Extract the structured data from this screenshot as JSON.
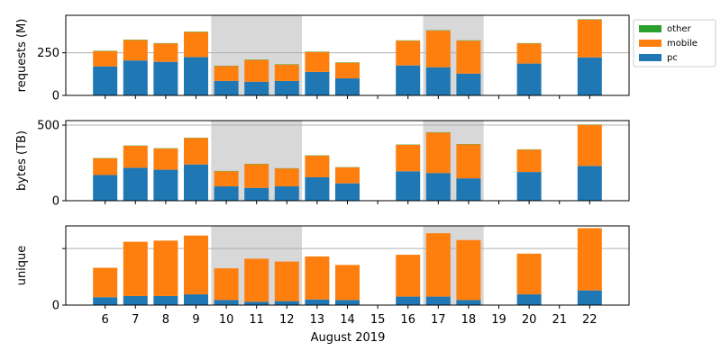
{
  "chart_data": {
    "type": "bar",
    "stacked": true,
    "xlabel": "August 2019",
    "x": [
      6,
      7,
      8,
      9,
      10,
      11,
      12,
      13,
      14,
      15,
      16,
      17,
      18,
      19,
      20,
      21,
      22
    ],
    "weekend_shading": [
      [
        10,
        12
      ],
      [
        17,
        18
      ]
    ],
    "legend": {
      "placement": "top-right",
      "entries": [
        {
          "name": "other",
          "color": "#2ca02c"
        },
        {
          "name": "mobile",
          "color": "#ff7f0e"
        },
        {
          "name": "pc",
          "color": "#1f77b4"
        }
      ]
    },
    "panels": [
      {
        "ylabel": "requests (M)",
        "ylim": [
          0,
          470
        ],
        "yticks": [
          {
            "value": 0,
            "label": "0"
          },
          {
            "value": 250,
            "label": "250"
          }
        ],
        "hline": 250,
        "series": [
          {
            "name": "pc",
            "values": [
              170,
              205,
              197,
              225,
              85,
              80,
              85,
              138,
              100,
              null,
              176,
              165,
              128,
              null,
              187,
              null,
              223
            ]
          },
          {
            "name": "mobile",
            "values": [
              90,
              120,
              108,
              147,
              87,
              128,
              96,
              117,
              92,
              null,
              145,
              215,
              193,
              null,
              118,
              null,
              222
            ]
          },
          {
            "name": "other",
            "values": [
              2,
              2,
              2,
              2,
              2,
              2,
              2,
              2,
              2,
              null,
              2,
              2,
              2,
              null,
              2,
              null,
              2
            ]
          }
        ]
      },
      {
        "ylabel": "bytes (TB)",
        "ylim": [
          0,
          530
        ],
        "yticks": [
          {
            "value": 0,
            "label": "0"
          },
          {
            "value": 500,
            "label": "500"
          }
        ],
        "hline": 500,
        "series": [
          {
            "name": "pc",
            "values": [
              170,
              218,
              205,
              240,
              95,
              85,
              95,
              155,
              115,
              null,
              195,
              183,
              148,
              null,
              190,
              null,
              230
            ]
          },
          {
            "name": "mobile",
            "values": [
              110,
              145,
              140,
              175,
              100,
              157,
              118,
              143,
              105,
              null,
              175,
              268,
              225,
              null,
              148,
              null,
              272
            ]
          },
          {
            "name": "other",
            "values": [
              2,
              2,
              2,
              2,
              2,
              2,
              2,
              2,
              2,
              null,
              2,
              2,
              2,
              null,
              2,
              null,
              2
            ]
          }
        ]
      },
      {
        "ylabel": "unique",
        "ylim": [
          0,
          70
        ],
        "yticks": [
          {
            "value": 0,
            "label": "0"
          },
          {
            "value": 50,
            "label": ""
          }
        ],
        "hline": 50,
        "series": [
          {
            "name": "pc",
            "values": [
              7,
              8,
              8,
              9.5,
              4.5,
              3,
              3.5,
              5,
              4.5,
              null,
              7.5,
              7.5,
              4.5,
              null,
              9.5,
              null,
              13
            ]
          },
          {
            "name": "mobile",
            "values": [
              26,
              48,
              49,
              52,
              28,
              38,
              35,
              38,
              31,
              null,
              37,
              56,
              53,
              null,
              36,
              null,
              55
            ]
          },
          {
            "name": "other",
            "values": [
              0,
              0,
              0,
              0,
              0,
              0,
              0,
              0,
              0,
              null,
              0,
              0,
              0,
              null,
              0,
              null,
              0
            ]
          }
        ]
      }
    ]
  }
}
